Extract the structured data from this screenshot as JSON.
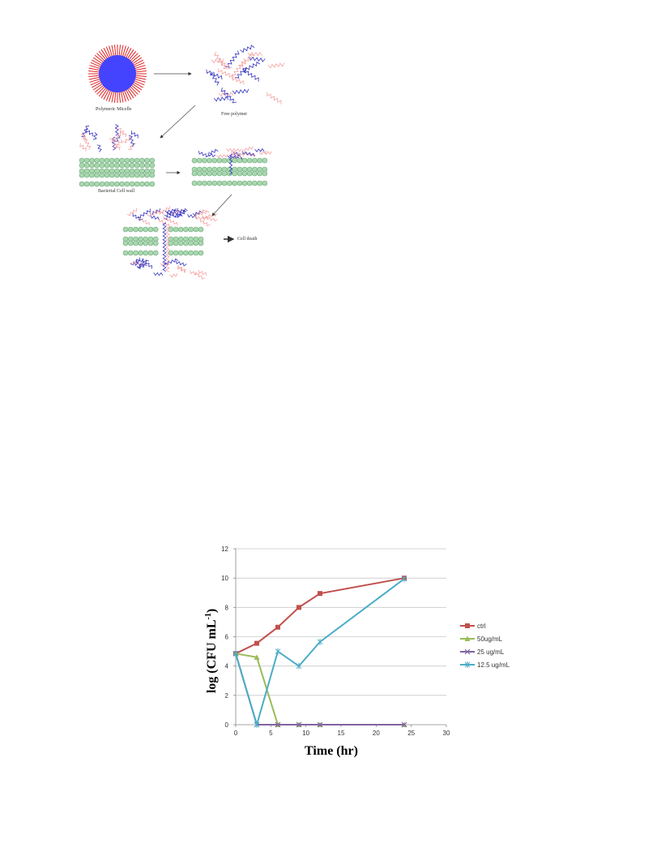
{
  "diagram": {
    "labels": {
      "micelle": "Polymeric Micelle",
      "free_polymer": "Free polymer",
      "cell_wall": "Bacterial Cell wall",
      "cell_death": "Cell death"
    },
    "colors": {
      "micelle_core": "#4444ff",
      "micelle_spikes": "#e02020",
      "hydrophilic_chain": "#f4a0a0",
      "hydrophobic_chain": "#3030c0",
      "lipid_head": "#a8d8b0",
      "lipid_head_stroke": "#70a878"
    }
  },
  "chart_data": {
    "type": "line",
    "xlabel": "Time (hr)",
    "ylabel": "log (CFU mL",
    "ylabel_sup": "-1",
    "ylabel_close": ")",
    "xlim": [
      0,
      30
    ],
    "ylim": [
      0,
      12
    ],
    "x_ticks": [
      "0",
      "5",
      "10",
      "15",
      "20",
      "25",
      "30"
    ],
    "y_ticks": [
      "0",
      "2",
      "4",
      "6",
      "8",
      "10",
      "12"
    ],
    "grid": true,
    "legend_position": "right",
    "series": [
      {
        "name": "ctrl",
        "color": "#c0504d",
        "marker": "square",
        "x": [
          0,
          3,
          6,
          9,
          12,
          24
        ],
        "y": [
          4.85,
          5.55,
          6.65,
          8.0,
          8.95,
          10.0
        ]
      },
      {
        "name": "50ug/mL",
        "color": "#9bbb59",
        "marker": "triangle",
        "x": [
          0,
          3,
          6,
          9,
          12,
          24
        ],
        "y": [
          4.85,
          4.6,
          0,
          0,
          0,
          0
        ]
      },
      {
        "name": "25 ug/mL",
        "color": "#8064a2",
        "marker": "x",
        "x": [
          0,
          3,
          6,
          9,
          12,
          24
        ],
        "y": [
          4.85,
          0,
          0,
          0,
          0,
          0
        ]
      },
      {
        "name": "12.5 ug/mL",
        "color": "#4bacc6",
        "marker": "star",
        "x": [
          0,
          3,
          6,
          9,
          12,
          24
        ],
        "y": [
          4.85,
          0,
          5.0,
          4.0,
          5.65,
          9.95
        ]
      }
    ]
  }
}
